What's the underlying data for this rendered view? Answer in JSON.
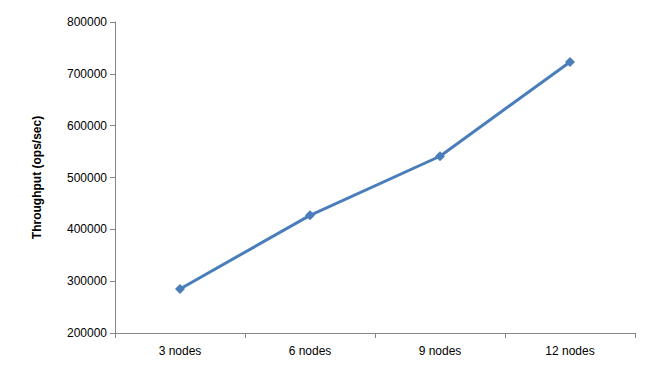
{
  "chart_data": {
    "type": "line",
    "y_label": "Throughput (ops/sec)",
    "categories": [
      "3 nodes",
      "6 nodes",
      "9 nodes",
      "12 nodes"
    ],
    "values": [
      285000,
      427000,
      541000,
      723000
    ],
    "color": "#4a7ebb",
    "marker": "diamond",
    "ylim": [
      200000,
      800000
    ],
    "yticks": [
      200000,
      300000,
      400000,
      500000,
      600000,
      700000,
      800000
    ],
    "grid": false
  }
}
